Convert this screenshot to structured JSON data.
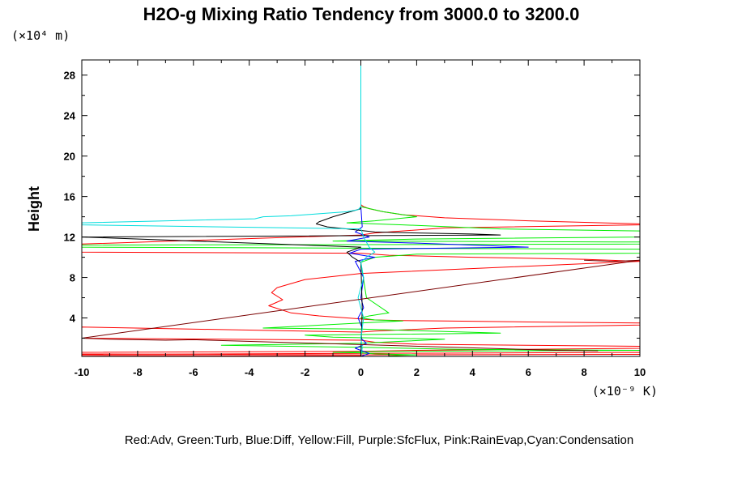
{
  "chart_data": {
    "type": "line",
    "title": "H2O-g Mixing Ratio Tendency from 3000.0 to 3200.0",
    "ylabel": "Height",
    "xlabel": "",
    "y_unit_label": "(×10⁴ m)",
    "x_unit_label": "(×10⁻⁹ K)",
    "legend_caption": "Red:Adv, Green:Turb, Blue:Diff, Yellow:Fill, Purple:SfcFlux, Pink:RainEvap,Cyan:Condensation",
    "xlim": [
      -10,
      10
    ],
    "ylim": [
      0.2,
      29.5
    ],
    "x_ticks": [
      -10,
      -8,
      -6,
      -4,
      -2,
      0,
      2,
      4,
      6,
      8,
      10
    ],
    "y_ticks": [
      4,
      8,
      12,
      16,
      20,
      24,
      28
    ],
    "x_tick_labels": [
      "-10",
      "-8",
      "-6",
      "-4",
      "-2",
      "0",
      "2",
      "4",
      "6",
      "8",
      "10"
    ],
    "y_tick_labels": [
      "4",
      "8",
      "12",
      "16",
      "20",
      "24",
      "28"
    ],
    "grid": false,
    "series": [
      {
        "color": "#ff0000",
        "x": [
          0,
          0,
          0.1,
          0.3,
          0.8,
          1.5,
          3,
          6,
          10,
          10,
          3,
          0.5,
          0,
          -10,
          -10,
          0,
          1,
          4,
          8,
          10,
          0,
          -2,
          -3,
          -3.2,
          -2.8,
          -3.3,
          -2.5,
          -1.5,
          -0.5,
          0,
          0.2,
          0.5,
          1.5,
          3,
          6,
          10,
          10,
          3,
          0.5,
          0,
          -10,
          -10,
          0,
          0.5,
          2,
          10,
          10,
          2,
          0,
          -10,
          -10,
          0,
          10,
          10,
          0,
          -10,
          -10,
          0
        ],
        "y": [
          29.5,
          15.2,
          15.0,
          14.8,
          14.5,
          14.2,
          13.9,
          13.6,
          13.3,
          13.2,
          12.9,
          12.4,
          12.2,
          11.3,
          10.5,
          10.4,
          10.2,
          10.0,
          9.8,
          9.6,
          8.4,
          7.8,
          7.0,
          6.5,
          5.8,
          5.2,
          4.5,
          4.2,
          4.0,
          3.9,
          3.85,
          3.8,
          3.75,
          3.7,
          3.6,
          3.5,
          3.3,
          3.0,
          2.7,
          2.6,
          3.1,
          2.0,
          1.8,
          1.6,
          1.4,
          1.2,
          1.0,
          0.8,
          0.7,
          0.6,
          0.4,
          0.5,
          0.6,
          0.4,
          0.35,
          0.45,
          0.3,
          0.25
        ]
      },
      {
        "color": "#00ee00",
        "x": [
          0,
          0,
          0.8,
          2,
          0.5,
          -0.5,
          1.5,
          5,
          10,
          10,
          2,
          -1,
          10,
          10,
          -10,
          -10,
          10,
          10,
          2,
          0.5,
          0,
          0.2,
          1,
          0.3,
          0,
          0.5,
          1.5,
          0,
          -3.5,
          0,
          2.5,
          5,
          -2,
          -1,
          3,
          1.5,
          0,
          -5,
          0,
          3.5,
          10,
          1,
          -1,
          0,
          0.5,
          2,
          1
        ],
        "y": [
          29.5,
          15.0,
          14.5,
          14.0,
          13.6,
          13.4,
          13.2,
          12.8,
          12.6,
          12.0,
          11.8,
          11.6,
          11.5,
          11.3,
          11.2,
          11.0,
          10.8,
          10.4,
          10.3,
          10.0,
          9.5,
          6.0,
          4.5,
          4.2,
          4.0,
          3.8,
          3.7,
          3.5,
          3.0,
          2.9,
          2.7,
          2.5,
          2.3,
          2.1,
          1.9,
          1.7,
          1.5,
          1.3,
          1.1,
          0.9,
          0.8,
          0.7,
          0.6,
          0.55,
          0.45,
          0.35,
          0.25
        ]
      },
      {
        "color": "#0000ff",
        "x": [
          0,
          0,
          0.05,
          -0.2,
          0.3,
          -0.5,
          2,
          6,
          0,
          -0.4,
          0.5,
          -0.2,
          0.1,
          0,
          0.1,
          -0.1,
          0.05,
          0,
          0.2,
          -0.2,
          0.3,
          0.1,
          0
        ],
        "y": [
          29.5,
          15.0,
          13.0,
          12.5,
          12.0,
          11.6,
          11.4,
          11.0,
          10.8,
          10.4,
          10.0,
          9.6,
          8.0,
          6.0,
          5.0,
          4.0,
          3.0,
          2.0,
          1.5,
          1.0,
          0.5,
          0.3,
          0.2
        ]
      },
      {
        "color": "#000000",
        "x": [
          0,
          0,
          -1,
          -1.5,
          -1.6,
          -1.2,
          -0.5,
          0.5,
          2,
          4,
          5,
          -10,
          0,
          -0.5,
          -0.3,
          0,
          0.05,
          0
        ],
        "y": [
          29.5,
          14.8,
          14.0,
          13.5,
          13.3,
          13.0,
          12.8,
          12.5,
          12.4,
          12.3,
          12.2,
          12.0,
          11.0,
          10.5,
          10.0,
          9.5,
          5.0,
          0.2
        ]
      },
      {
        "color": "#00dddd",
        "x": [
          0,
          0,
          -0.1,
          -0.5,
          -1.5,
          -2.5,
          -3.5,
          -3.8,
          -10,
          -10,
          0,
          0.1,
          0.3,
          0.5,
          0.2,
          0,
          0.1,
          -0.1,
          0.1,
          0,
          0.05,
          0
        ],
        "y": [
          29.5,
          15.0,
          14.7,
          14.5,
          14.3,
          14.1,
          14.0,
          13.8,
          13.4,
          13.2,
          12.8,
          12.0,
          11.0,
          10.5,
          10.0,
          9.5,
          8.0,
          6.0,
          4.0,
          2.0,
          1.0,
          0.2
        ]
      },
      {
        "color": "#7a0000",
        "x": [
          8,
          9,
          9.5,
          10,
          -10,
          -9,
          -7,
          -6,
          7,
          8.5
        ],
        "y": [
          9.7,
          9.6,
          9.65,
          9.7,
          2.0,
          1.9,
          1.8,
          1.85,
          0.8,
          0.75
        ]
      }
    ]
  }
}
